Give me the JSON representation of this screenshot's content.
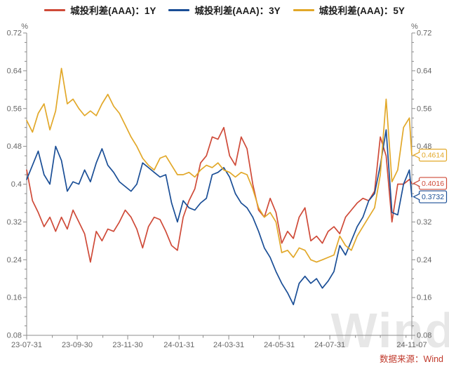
{
  "watermark": "Wind",
  "source_note": "数据来源：Wind",
  "chart_data": {
    "type": "line",
    "title": "",
    "y_unit": "%",
    "ylim": [
      0.08,
      0.72
    ],
    "y_tick_step": 0.08,
    "y_minor_step": 0.02,
    "grid": false,
    "legend_position": "top",
    "x_range": [
      "2023-07-31",
      "2024-11-07"
    ],
    "x_major_ticks": [
      {
        "date": "2023-07-31",
        "label": "23-07-31"
      },
      {
        "date": "2023-09-30",
        "label": "23-09-30"
      },
      {
        "date": "2023-11-30",
        "label": "23-11-30"
      },
      {
        "date": "2024-01-31",
        "label": "24-01-31"
      },
      {
        "date": "2024-03-31",
        "label": "24-03-31"
      },
      {
        "date": "2024-05-31",
        "label": "24-05-31"
      },
      {
        "date": "2024-07-31",
        "label": "24-07-31"
      },
      {
        "date": "2024-11-07",
        "label": "24-11-07"
      }
    ],
    "x_minor_tick_dates": [
      "2023-08-31",
      "2023-10-31",
      "2023-12-31",
      "2024-02-29",
      "2024-04-30",
      "2024-06-30",
      "2024-08-31",
      "2024-09-30",
      "2024-10-31"
    ],
    "x_dates": [
      "2023-07-31",
      "2023-08-07",
      "2023-08-14",
      "2023-08-21",
      "2023-08-28",
      "2023-09-04",
      "2023-09-11",
      "2023-09-18",
      "2023-09-25",
      "2023-10-02",
      "2023-10-09",
      "2023-10-16",
      "2023-10-23",
      "2023-10-30",
      "2023-11-06",
      "2023-11-13",
      "2023-11-20",
      "2023-11-27",
      "2023-12-04",
      "2023-12-11",
      "2023-12-18",
      "2023-12-25",
      "2024-01-01",
      "2024-01-08",
      "2024-01-15",
      "2024-01-22",
      "2024-01-29",
      "2024-02-05",
      "2024-02-12",
      "2024-02-19",
      "2024-02-26",
      "2024-03-04",
      "2024-03-11",
      "2024-03-18",
      "2024-03-25",
      "2024-04-01",
      "2024-04-08",
      "2024-04-15",
      "2024-04-22",
      "2024-04-29",
      "2024-05-06",
      "2024-05-13",
      "2024-05-20",
      "2024-05-27",
      "2024-06-03",
      "2024-06-10",
      "2024-06-17",
      "2024-06-24",
      "2024-07-01",
      "2024-07-08",
      "2024-07-15",
      "2024-07-22",
      "2024-07-29",
      "2024-08-05",
      "2024-08-12",
      "2024-08-19",
      "2024-08-26",
      "2024-09-02",
      "2024-09-09",
      "2024-09-16",
      "2024-09-23",
      "2024-09-30",
      "2024-10-07",
      "2024-10-14",
      "2024-10-21",
      "2024-10-28",
      "2024-11-04",
      "2024-11-07"
    ],
    "series": [
      {
        "name": "城投利差(AAA)：1Y",
        "color": "#cf4a38",
        "last_value_label": "0.4016",
        "values": [
          0.43,
          0.365,
          0.34,
          0.31,
          0.33,
          0.3,
          0.33,
          0.305,
          0.345,
          0.32,
          0.295,
          0.235,
          0.3,
          0.28,
          0.305,
          0.3,
          0.32,
          0.345,
          0.33,
          0.305,
          0.265,
          0.31,
          0.33,
          0.325,
          0.3,
          0.27,
          0.26,
          0.33,
          0.365,
          0.39,
          0.445,
          0.46,
          0.5,
          0.495,
          0.52,
          0.46,
          0.44,
          0.5,
          0.475,
          0.4,
          0.345,
          0.33,
          0.37,
          0.34,
          0.275,
          0.3,
          0.285,
          0.33,
          0.35,
          0.28,
          0.29,
          0.275,
          0.3,
          0.31,
          0.295,
          0.33,
          0.345,
          0.36,
          0.37,
          0.365,
          0.385,
          0.5,
          0.46,
          0.32,
          0.4,
          0.4,
          0.41,
          0.4016
        ]
      },
      {
        "name": "城投利差(AAA)：3Y",
        "color": "#1a4e96",
        "last_value_label": "0.3732",
        "values": [
          0.41,
          0.44,
          0.47,
          0.42,
          0.4,
          0.48,
          0.45,
          0.385,
          0.405,
          0.4,
          0.43,
          0.405,
          0.445,
          0.475,
          0.44,
          0.425,
          0.405,
          0.395,
          0.385,
          0.4,
          0.445,
          0.435,
          0.425,
          0.415,
          0.42,
          0.36,
          0.32,
          0.365,
          0.35,
          0.345,
          0.36,
          0.37,
          0.42,
          0.425,
          0.435,
          0.415,
          0.38,
          0.36,
          0.35,
          0.33,
          0.3,
          0.265,
          0.245,
          0.215,
          0.19,
          0.17,
          0.145,
          0.19,
          0.205,
          0.19,
          0.2,
          0.18,
          0.195,
          0.215,
          0.27,
          0.25,
          0.28,
          0.31,
          0.33,
          0.365,
          0.38,
          0.44,
          0.515,
          0.34,
          0.335,
          0.4,
          0.43,
          0.3732
        ]
      },
      {
        "name": "城投利差(AAA)：5Y",
        "color": "#e2a829",
        "last_value_label": "0.4614",
        "values": [
          0.535,
          0.51,
          0.55,
          0.57,
          0.515,
          0.555,
          0.645,
          0.57,
          0.58,
          0.56,
          0.545,
          0.555,
          0.545,
          0.57,
          0.59,
          0.565,
          0.55,
          0.525,
          0.5,
          0.48,
          0.455,
          0.44,
          0.43,
          0.455,
          0.46,
          0.44,
          0.42,
          0.42,
          0.425,
          0.415,
          0.43,
          0.44,
          0.435,
          0.445,
          0.43,
          0.425,
          0.415,
          0.425,
          0.42,
          0.39,
          0.35,
          0.33,
          0.34,
          0.32,
          0.255,
          0.26,
          0.245,
          0.265,
          0.26,
          0.24,
          0.235,
          0.24,
          0.245,
          0.25,
          0.29,
          0.27,
          0.26,
          0.29,
          0.31,
          0.33,
          0.35,
          0.42,
          0.58,
          0.405,
          0.43,
          0.52,
          0.54,
          0.4614
        ]
      }
    ]
  }
}
